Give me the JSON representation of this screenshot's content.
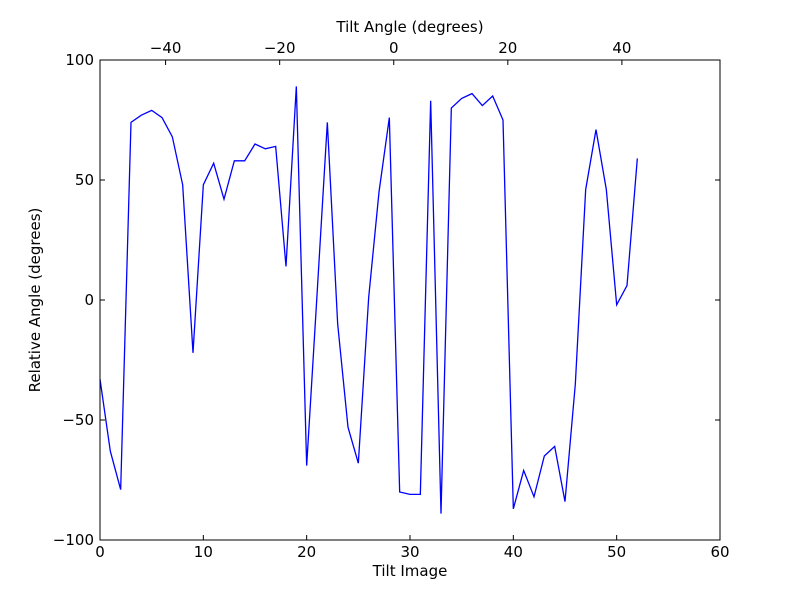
{
  "chart_data": {
    "type": "line",
    "title": "",
    "xlabel": "Tilt Image",
    "ylabel": "Relative Angle (degrees)",
    "secondary_xlabel": "Tilt Angle (degrees)",
    "xlim": [
      0,
      60
    ],
    "ylim": [
      -100,
      100
    ],
    "secondary_xlim": [
      -51.5,
      57.2
    ],
    "x_ticks": [
      0,
      10,
      20,
      30,
      40,
      50,
      60
    ],
    "x_tick_labels": [
      "0",
      "10",
      "20",
      "30",
      "40",
      "50",
      "60"
    ],
    "y_ticks": [
      -100,
      -50,
      0,
      50,
      100
    ],
    "y_tick_labels": [
      "−100",
      "−50",
      "0",
      "50",
      "100"
    ],
    "secondary_x_ticks": [
      -40,
      -20,
      0,
      20,
      40
    ],
    "secondary_x_tick_labels": [
      "−40",
      "−20",
      "0",
      "20",
      "40"
    ],
    "grid": false,
    "line_color": "#0000ff",
    "series": [
      {
        "x": [
          0,
          1,
          2,
          3,
          4,
          5,
          6,
          7,
          8,
          9,
          10,
          11,
          12,
          13,
          14,
          15,
          16,
          17,
          18,
          19,
          20,
          21,
          22,
          23,
          24,
          25,
          26,
          27,
          28,
          29,
          30,
          31,
          32,
          33,
          34,
          35,
          36,
          37,
          38,
          39,
          40,
          41,
          42,
          43,
          44,
          45,
          46,
          47,
          48,
          49,
          50,
          51,
          52
        ],
        "values": [
          -33,
          -63,
          -79,
          74,
          77,
          79,
          76,
          68,
          48,
          -22,
          48,
          57,
          42,
          58,
          58,
          65,
          63,
          64,
          14,
          89,
          -69,
          2,
          74,
          -10,
          -53,
          -68,
          1,
          45,
          76,
          -80,
          -81,
          -81,
          83,
          -89,
          80,
          84,
          86,
          81,
          85,
          75,
          -87,
          -71,
          -82,
          -65,
          -61,
          -84,
          -35,
          46,
          71,
          46,
          -2,
          6,
          59
        ]
      }
    ]
  }
}
